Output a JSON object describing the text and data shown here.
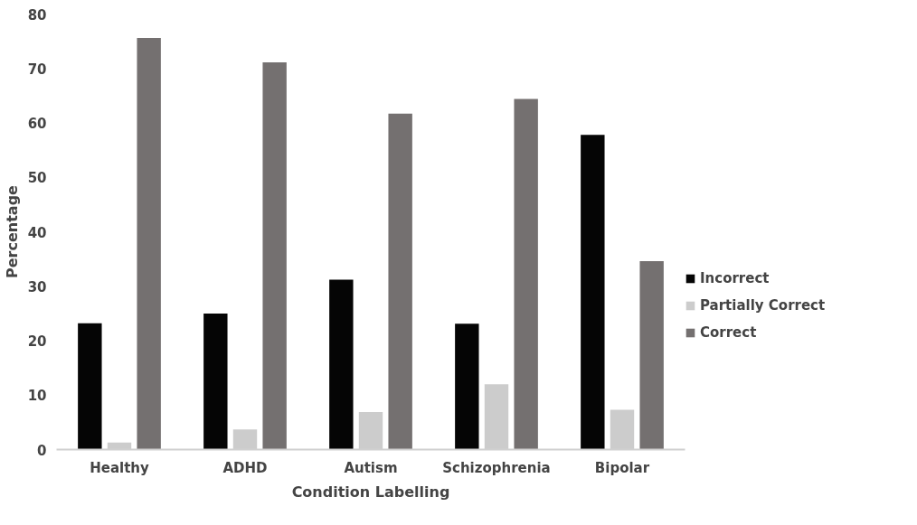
{
  "chart_data": {
    "type": "bar",
    "xlabel": "Condition Labelling",
    "ylabel": "Percentage",
    "categories": [
      "Healthy",
      "ADHD",
      "Autism",
      "Schizophrenia",
      "Bipolar"
    ],
    "series": [
      {
        "name": "Incorrect",
        "color": "#050505",
        "values": [
          23.2,
          25.0,
          31.2,
          23.1,
          57.8
        ]
      },
      {
        "name": "Partially Correct",
        "color": "#cccccc",
        "values": [
          1.3,
          3.7,
          6.9,
          12.0,
          7.3
        ]
      },
      {
        "name": "Correct",
        "color": "#747070",
        "values": [
          75.6,
          71.1,
          61.7,
          64.4,
          34.6
        ]
      }
    ],
    "ylim": [
      0,
      80
    ],
    "yticks": [
      0,
      10,
      20,
      30,
      40,
      50,
      60,
      70,
      80
    ],
    "grid": false,
    "legend": "right"
  }
}
